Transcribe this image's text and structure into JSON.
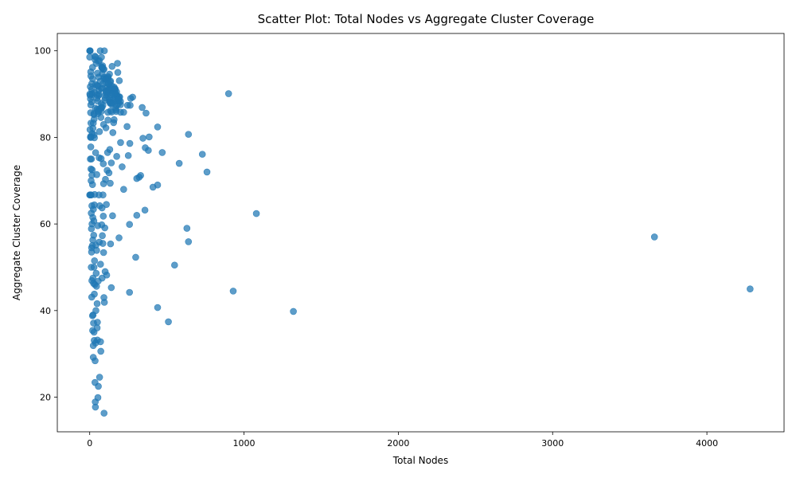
{
  "chart_data": {
    "type": "scatter",
    "title": "Scatter Plot: Total Nodes vs Aggregate Cluster Coverage",
    "xlabel": "Total Nodes",
    "ylabel": "Aggregate Cluster Coverage",
    "xlim": [
      -210,
      4500
    ],
    "ylim": [
      12,
      104
    ],
    "xticks": [
      0,
      1000,
      2000,
      3000,
      4000
    ],
    "yticks": [
      20,
      40,
      60,
      80,
      100
    ],
    "grid": false,
    "color": "#1f77b4",
    "points": [
      [
        4280,
        45
      ],
      [
        3660,
        57
      ],
      [
        1320,
        39.8
      ],
      [
        1080,
        62.4
      ],
      [
        930,
        44.5
      ],
      [
        900,
        90.1
      ],
      [
        760,
        72
      ],
      [
        730,
        76.1
      ],
      [
        640,
        80.7
      ],
      [
        640,
        55.9
      ],
      [
        630,
        59
      ],
      [
        580,
        74
      ],
      [
        550,
        50.5
      ],
      [
        510,
        37.4
      ],
      [
        470,
        76.5
      ],
      [
        440,
        82.4
      ],
      [
        440,
        69
      ],
      [
        440,
        40.7
      ],
      [
        410,
        68.5
      ],
      [
        385,
        80.1
      ],
      [
        380,
        77
      ],
      [
        365,
        85.6
      ],
      [
        360,
        77.6
      ],
      [
        358,
        63.2
      ],
      [
        345,
        79.8
      ],
      [
        340,
        86.9
      ],
      [
        330,
        71.2
      ],
      [
        320,
        70.8
      ],
      [
        305,
        70.5
      ],
      [
        305,
        62
      ],
      [
        298,
        52.3
      ],
      [
        278,
        89.3
      ],
      [
        265,
        89
      ],
      [
        262,
        87.4
      ],
      [
        260,
        78.6
      ],
      [
        258,
        59.9
      ],
      [
        258,
        44.2
      ],
      [
        250,
        75.8
      ],
      [
        245,
        87.4
      ],
      [
        242,
        82.5
      ],
      [
        220,
        85.8
      ],
      [
        220,
        68
      ],
      [
        210,
        73.2
      ],
      [
        200,
        85.8
      ],
      [
        200,
        78.8
      ],
      [
        192,
        93.1
      ],
      [
        190,
        88.6
      ],
      [
        190,
        56.8
      ],
      [
        182,
        95
      ],
      [
        180,
        97.1
      ],
      [
        175,
        75.6
      ],
      [
        172,
        86
      ],
      [
        168,
        89
      ],
      [
        165,
        91.2
      ],
      [
        160,
        89.9
      ],
      [
        158,
        84.1
      ],
      [
        155,
        83.4
      ],
      [
        150,
        81.1
      ],
      [
        148,
        61.9
      ],
      [
        145,
        96.4
      ],
      [
        140,
        74.1
      ],
      [
        140,
        45.3
      ],
      [
        135,
        55.4
      ],
      [
        133,
        69.4
      ],
      [
        130,
        77.2
      ],
      [
        128,
        94.6
      ],
      [
        125,
        71.8
      ],
      [
        120,
        92.4
      ],
      [
        118,
        84
      ],
      [
        116,
        76.5
      ],
      [
        113,
        72.4
      ],
      [
        110,
        48.2
      ],
      [
        108,
        64.5
      ],
      [
        105,
        90.4
      ],
      [
        105,
        82.2
      ],
      [
        102,
        70.3
      ],
      [
        100,
        89.1
      ],
      [
        100,
        49
      ],
      [
        98,
        59.1
      ],
      [
        95,
        100
      ],
      [
        95,
        41.9
      ],
      [
        93,
        16.3
      ],
      [
        92,
        43
      ],
      [
        90,
        69.3
      ],
      [
        90,
        53.4
      ],
      [
        88,
        73.9
      ],
      [
        88,
        61.8
      ],
      [
        86,
        66.7
      ],
      [
        85,
        55.5
      ],
      [
        82,
        57.3
      ],
      [
        80,
        63.7
      ],
      [
        80,
        47.5
      ],
      [
        78,
        59.8
      ],
      [
        76,
        98.5
      ],
      [
        75,
        86
      ],
      [
        74,
        75.1
      ],
      [
        72,
        30.6
      ],
      [
        70,
        32.8
      ],
      [
        70,
        50.7
      ],
      [
        68,
        100
      ],
      [
        65,
        64.2
      ],
      [
        64,
        24.6
      ],
      [
        62,
        55.8
      ],
      [
        60,
        66.7
      ],
      [
        58,
        85.9
      ],
      [
        56,
        22.5
      ],
      [
        55,
        46.8
      ],
      [
        53,
        19.9
      ],
      [
        52,
        59.6
      ],
      [
        50,
        33.2
      ],
      [
        50,
        37.3
      ],
      [
        48,
        36
      ],
      [
        48,
        41.6
      ],
      [
        46,
        71.4
      ],
      [
        45,
        53.9
      ],
      [
        44,
        45.6
      ],
      [
        42,
        48.6
      ],
      [
        40,
        55.1
      ],
      [
        40,
        40
      ],
      [
        38,
        32.5
      ],
      [
        37,
        17.7
      ],
      [
        36,
        18.9
      ],
      [
        35,
        28.4
      ],
      [
        34,
        23.4
      ],
      [
        33,
        46
      ],
      [
        32,
        66.8
      ],
      [
        31,
        51.5
      ],
      [
        30,
        64.4
      ],
      [
        30,
        43.8
      ],
      [
        29,
        33.1
      ],
      [
        28,
        35
      ],
      [
        28,
        50
      ],
      [
        27,
        60.7
      ],
      [
        26,
        57.4
      ],
      [
        25,
        46.3
      ],
      [
        25,
        37.1
      ],
      [
        24,
        63.4
      ],
      [
        23,
        31.9
      ],
      [
        23,
        29.2
      ],
      [
        22,
        39
      ],
      [
        21,
        47.5
      ],
      [
        20,
        56.3
      ],
      [
        20,
        61.5
      ],
      [
        19,
        35.4
      ],
      [
        18,
        38.8
      ],
      [
        18,
        69.1
      ],
      [
        17,
        55
      ],
      [
        16,
        72.5
      ],
      [
        15,
        60
      ],
      [
        14,
        64.2
      ],
      [
        14,
        46.9
      ],
      [
        13,
        43.1
      ],
      [
        12,
        53.5
      ],
      [
        12,
        54.5
      ],
      [
        11,
        58.9
      ],
      [
        11,
        75
      ],
      [
        10,
        50
      ],
      [
        10,
        66.7
      ],
      [
        10,
        62.5
      ],
      [
        9,
        80
      ],
      [
        9,
        70
      ],
      [
        8,
        83.3
      ],
      [
        8,
        72.7
      ],
      [
        7,
        87.5
      ],
      [
        7,
        77.8
      ],
      [
        6,
        85.7
      ],
      [
        6,
        66.7
      ],
      [
        5,
        80
      ],
      [
        5,
        88.9
      ],
      [
        4,
        91.7
      ],
      [
        4,
        75
      ],
      [
        3,
        100
      ],
      [
        3,
        66.7
      ],
      [
        2,
        100
      ],
      [
        2,
        81.8
      ],
      [
        1,
        100
      ],
      [
        1,
        90
      ],
      [
        0,
        100
      ],
      [
        0,
        66.7
      ]
    ],
    "dense_band": {
      "upper_x": [
        0,
        20,
        40,
        60,
        80,
        100,
        120,
        140,
        170,
        200
      ],
      "upper_y": [
        100,
        100,
        100,
        99,
        97,
        96,
        94,
        93,
        91,
        89
      ],
      "lower_y": [
        64,
        62,
        70,
        74,
        78,
        82,
        84,
        85,
        86,
        87
      ],
      "count_per_step": 14
    }
  }
}
